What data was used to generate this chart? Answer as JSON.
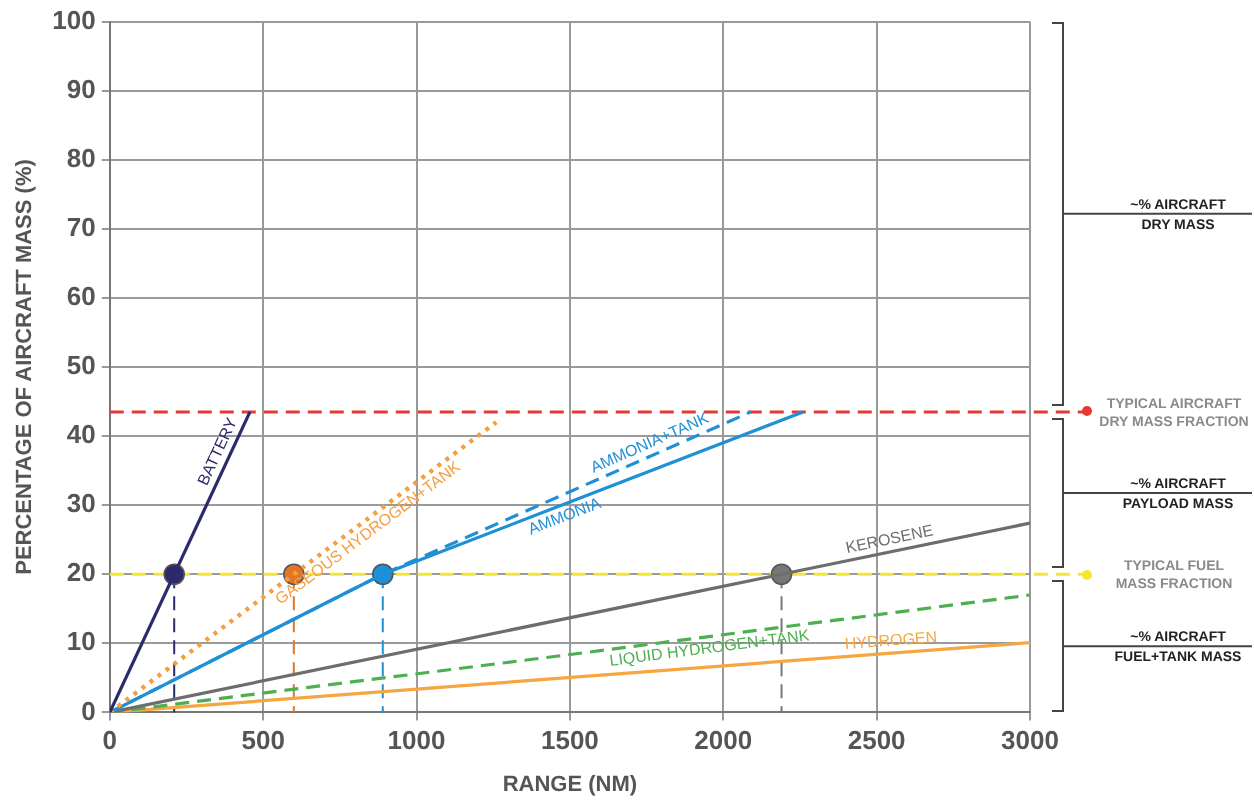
{
  "chart_data": {
    "type": "line",
    "xlabel": "RANGE (NM)",
    "ylabel": "PERCENTAGE OF AIRCRAFT MASS (%)",
    "xlim": [
      0,
      3000
    ],
    "xticks": [
      0,
      500,
      1000,
      1500,
      2000,
      2500,
      3000
    ],
    "ylim": [
      0,
      100
    ],
    "yticks": [
      0,
      10,
      20,
      30,
      40,
      50,
      60,
      70,
      80,
      90,
      100
    ],
    "grid": true,
    "legend": false,
    "marker": "none",
    "series": [
      {
        "name": "BATTERY",
        "color": "#2b2a6b",
        "x": [
          0,
          457
        ],
        "values": [
          0,
          43.5
        ],
        "line_style": "solid"
      },
      {
        "name": "GASEOUS HYDROGEN+TANK",
        "color": "#f5a040",
        "x": [
          0,
          600,
          1260
        ],
        "values": [
          0,
          20,
          42
        ],
        "line_style": "dotted"
      },
      {
        "name": "AMMONIA+TANK",
        "color": "#1e90d6",
        "x": [
          0,
          890,
          2090
        ],
        "values": [
          0,
          20,
          43.5
        ],
        "line_style": "dashed"
      },
      {
        "name": "AMMONIA",
        "color": "#1e90d6",
        "x": [
          0,
          890,
          2260
        ],
        "values": [
          0,
          20,
          43.5
        ],
        "line_style": "solid"
      },
      {
        "name": "KEROSENE",
        "color": "#6d6d6d",
        "x": [
          0,
          2190,
          3000
        ],
        "values": [
          0,
          20,
          27.4
        ],
        "line_style": "solid"
      },
      {
        "name": "LIQUID HYDROGEN+TANK",
        "color": "#4caf50",
        "x": [
          0,
          1540,
          3000
        ],
        "values": [
          0,
          8.6,
          17
        ],
        "line_style": "dashed"
      },
      {
        "name": "HYDROGEN",
        "color": "#f5a640",
        "x": [
          0,
          3000
        ],
        "values": [
          0,
          10.1
        ],
        "line_style": "solid"
      },
      {
        "type": "scatter",
        "color": "#2b2a6b",
        "x": [
          210
        ],
        "values": [
          20
        ],
        "errors": [
          [
            0,
            20
          ]
        ],
        "marker": "circle"
      },
      {
        "type": "scatter",
        "color": "#e0762a",
        "x": [
          600
        ],
        "values": [
          20
        ],
        "errors": [
          [
            0,
            20
          ]
        ],
        "marker": "circle"
      },
      {
        "type": "scatter",
        "color": "#1e90d6",
        "x": [
          890
        ],
        "values": [
          20
        ],
        "errors": [
          [
            0,
            20
          ]
        ],
        "marker": "circle"
      },
      {
        "type": "scatter",
        "color": "#777777",
        "x": [
          2190
        ],
        "values": [
          20
        ],
        "errors": [
          [
            0,
            20
          ]
        ],
        "marker": "circle"
      }
    ],
    "ref_lines": [
      {
        "axis": "y",
        "value": 43.5,
        "label": "TYPICAL AIRCRAFT\nDRY MASS FRACTION",
        "color": "#e53935",
        "line_style": "dashed"
      },
      {
        "axis": "y",
        "value": 20,
        "label": "TYPICAL FUEL\nMASS FRACTION",
        "color": "#f5e636",
        "line_style": "dashed"
      }
    ],
    "annotations": [
      "~% AIRCRAFT\nDRY MASS",
      "~% AIRCRAFT\nPAYLOAD MASS",
      "~% AIRCRAFT\nFUEL+TANK MASS"
    ]
  }
}
